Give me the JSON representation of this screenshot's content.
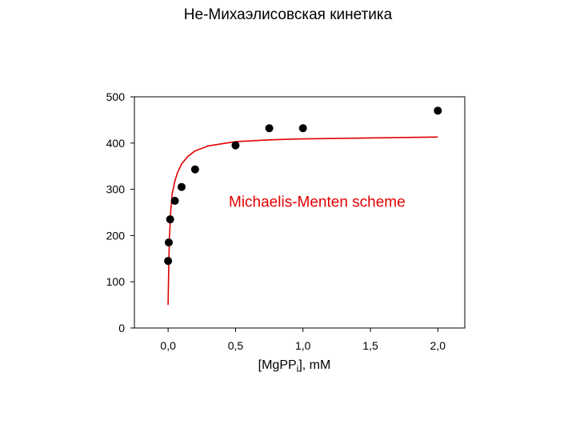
{
  "page": {
    "title": "Не-Михаэлисовская кинетика"
  },
  "chart_data": {
    "type": "scatter",
    "xlabel": {
      "main": "[MgPP",
      "sub": "i",
      "rest": "], mM"
    },
    "ylabel": "",
    "xlim": [
      -0.25,
      2.2
    ],
    "ylim": [
      0,
      500
    ],
    "xticks": [
      0.0,
      0.5,
      1.0,
      1.5,
      2.0
    ],
    "xtick_labels": [
      "0,0",
      "0,5",
      "1,0",
      "1,5",
      "2,0"
    ],
    "yticks": [
      0,
      100,
      200,
      300,
      400,
      500
    ],
    "ytick_labels": [
      "0",
      "100",
      "200",
      "300",
      "400",
      "500"
    ],
    "grid": false,
    "series": [
      {
        "kind": "points",
        "color": "#000000",
        "x": [
          0.0,
          0.005,
          0.015,
          0.05,
          0.1,
          0.2,
          0.5,
          0.75,
          1.0,
          2.0
        ],
        "y": [
          145,
          185,
          235,
          275,
          305,
          343,
          395,
          432,
          432,
          470
        ]
      },
      {
        "kind": "line",
        "color": "#e00000",
        "x": [
          0.0,
          0.005,
          0.01,
          0.02,
          0.03,
          0.05,
          0.07,
          0.1,
          0.15,
          0.2,
          0.3,
          0.5,
          0.75,
          1.0,
          1.5,
          2.0
        ],
        "y": [
          50,
          140,
          195,
          255,
          290,
          318,
          336,
          355,
          372,
          383,
          394,
          403,
          407,
          409,
          411,
          413
        ]
      }
    ],
    "annotations": [
      {
        "text": "Michaelis-Menten scheme",
        "x": 0.45,
        "y": 262,
        "color": "#e00000"
      }
    ]
  }
}
